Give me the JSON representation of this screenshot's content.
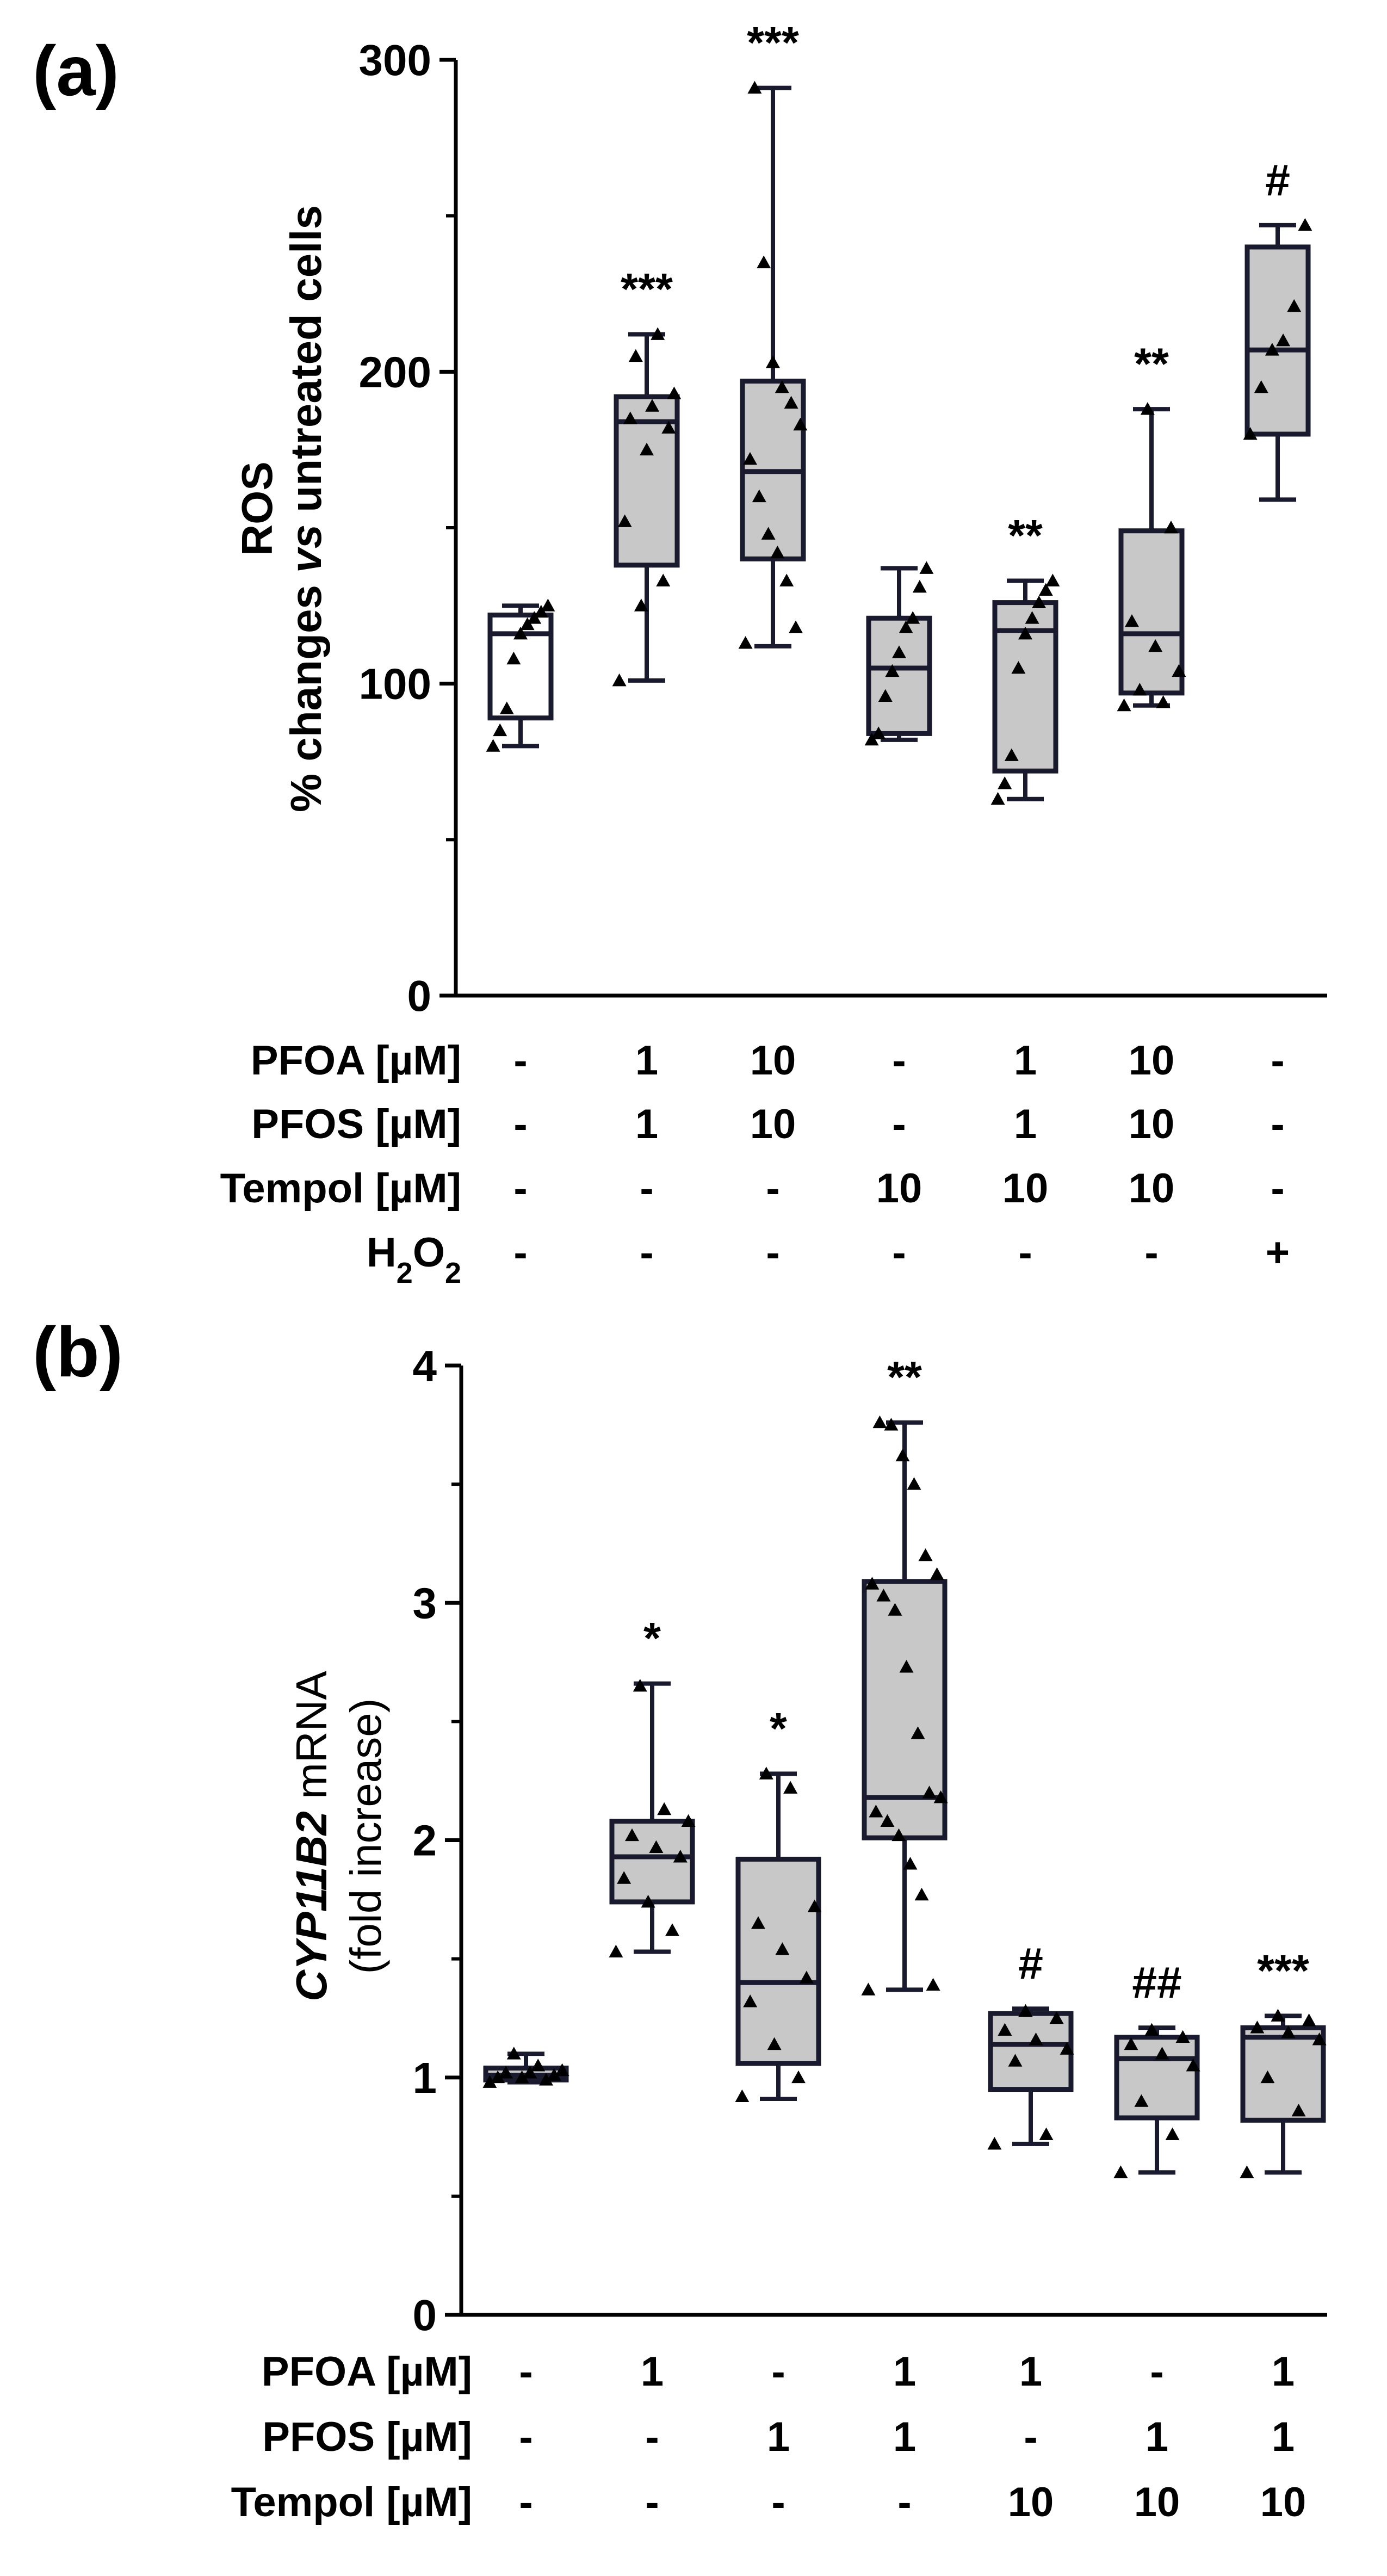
{
  "chart_data": [
    {
      "panel": "(a)",
      "type": "box",
      "ylabel_line1": "ROS",
      "ylabel_line2_pre": "% changes ",
      "ylabel_line2_ital": "vs",
      "ylabel_line2_post": " untreated cells",
      "ylim": [
        0,
        300
      ],
      "yticks": [
        0,
        100,
        200,
        300
      ],
      "groups": [
        {
          "fill": "#ffffff",
          "whisker": [
            80,
            125
          ],
          "q1": 89,
          "median": 116,
          "q3": 122,
          "sig": "",
          "points": [
            80,
            85,
            92,
            108,
            116,
            119,
            121,
            123,
            125
          ]
        },
        {
          "fill": "#c8c8c8",
          "whisker": [
            101,
            212
          ],
          "q1": 138,
          "median": 184,
          "q3": 192,
          "sig": "***",
          "points": [
            101,
            125,
            133,
            152,
            175,
            182,
            185,
            189,
            193,
            205,
            212
          ]
        },
        {
          "fill": "#c8c8c8",
          "whisker": [
            112,
            291
          ],
          "q1": 140,
          "median": 168,
          "q3": 197,
          "sig": "***",
          "points": [
            113,
            118,
            133,
            142,
            148,
            160,
            172,
            183,
            190,
            195,
            203,
            235,
            291
          ]
        },
        {
          "fill": "#c8c8c8",
          "whisker": [
            82,
            137
          ],
          "q1": 84,
          "median": 105,
          "q3": 121,
          "sig": "",
          "points": [
            82,
            84,
            96,
            104,
            110,
            118,
            121,
            131,
            137
          ]
        },
        {
          "fill": "#c8c8c8",
          "whisker": [
            63,
            133
          ],
          "q1": 72,
          "median": 117,
          "q3": 126,
          "sig": "**",
          "points": [
            63,
            68,
            77,
            105,
            116,
            121,
            126,
            130,
            133
          ]
        },
        {
          "fill": "#c8c8c8",
          "whisker": [
            93,
            188
          ],
          "q1": 97,
          "median": 116,
          "q3": 149,
          "sig": "**",
          "points": [
            93,
            94,
            98,
            104,
            112,
            120,
            150,
            188
          ]
        },
        {
          "fill": "#c8c8c8",
          "whisker": [
            159,
            247
          ],
          "q1": 180,
          "median": 207,
          "q3": 240,
          "sig": "#",
          "points": [
            180,
            195,
            207,
            210,
            221,
            247
          ]
        }
      ],
      "table": [
        {
          "label": "PFOA [µM]",
          "values": [
            "-",
            "1",
            "10",
            "-",
            "1",
            "10",
            "-"
          ]
        },
        {
          "label": "PFOS [µM]",
          "values": [
            "-",
            "1",
            "10",
            "-",
            "1",
            "10",
            "-"
          ]
        },
        {
          "label": "Tempol [µM]",
          "values": [
            "-",
            "-",
            "-",
            "10",
            "10",
            "10",
            "-"
          ]
        },
        {
          "label_main": "H",
          "label_sub1": "2",
          "label_mid": "O",
          "label_sub2": "2",
          "values": [
            "-",
            "-",
            "-",
            "-",
            "-",
            "-",
            "+"
          ]
        }
      ]
    },
    {
      "panel": "(b)",
      "type": "box",
      "ylabel_line1_ital": "CYP11B2",
      "ylabel_line1_post": " mRNA",
      "ylabel_line2": "(fold increase)",
      "ylim": [
        0,
        4
      ],
      "yticks": [
        0,
        1,
        2,
        3,
        4
      ],
      "groups": [
        {
          "fill": "#c8c8c8",
          "whisker": [
            0.98,
            1.1
          ],
          "q1": 0.99,
          "median": 1.01,
          "q3": 1.04,
          "sig": "",
          "points": [
            0.98,
            0.99,
            1.0,
            1.0,
            1.01,
            1.02,
            1.02,
            1.03,
            1.05,
            1.1
          ]
        },
        {
          "fill": "#c8c8c8",
          "whisker": [
            1.53,
            2.66
          ],
          "q1": 1.74,
          "median": 1.93,
          "q3": 2.08,
          "sig": "*",
          "points": [
            1.53,
            1.62,
            1.74,
            1.84,
            1.93,
            1.97,
            2.02,
            2.08,
            2.13,
            2.65
          ]
        },
        {
          "fill": "#c8c8c8",
          "whisker": [
            0.91,
            2.28
          ],
          "q1": 1.06,
          "median": 1.4,
          "q3": 1.92,
          "sig": "*",
          "points": [
            0.92,
            1.0,
            1.14,
            1.32,
            1.42,
            1.54,
            1.65,
            1.72,
            2.22,
            2.28
          ]
        },
        {
          "fill": "#c8c8c8",
          "whisker": [
            1.37,
            3.76
          ],
          "q1": 2.01,
          "median": 2.18,
          "q3": 3.09,
          "sig": "**",
          "points": [
            1.37,
            1.39,
            1.77,
            1.9,
            2.02,
            2.08,
            2.12,
            2.18,
            2.2,
            2.45,
            2.73,
            2.97,
            3.03,
            3.08,
            3.12,
            3.2,
            3.5,
            3.62,
            3.75,
            3.76
          ]
        },
        {
          "fill": "#c8c8c8",
          "whisker": [
            0.72,
            1.29
          ],
          "q1": 0.95,
          "median": 1.14,
          "q3": 1.27,
          "sig": "#",
          "points": [
            0.72,
            0.76,
            1.07,
            1.12,
            1.16,
            1.2,
            1.25,
            1.28
          ]
        },
        {
          "fill": "#c8c8c8",
          "whisker": [
            0.6,
            1.21
          ],
          "q1": 0.83,
          "median": 1.08,
          "q3": 1.17,
          "sig": "##",
          "points": [
            0.6,
            0.76,
            0.9,
            1.05,
            1.1,
            1.14,
            1.17,
            1.2
          ]
        },
        {
          "fill": "#c8c8c8",
          "whisker": [
            0.6,
            1.26
          ],
          "q1": 0.82,
          "median": 1.17,
          "q3": 1.21,
          "sig": "***",
          "points": [
            0.6,
            0.86,
            1.0,
            1.16,
            1.19,
            1.21,
            1.24,
            1.26
          ]
        }
      ],
      "table": [
        {
          "label": "PFOA [µM]",
          "values": [
            "-",
            "1",
            "-",
            "1",
            "1",
            "-",
            "1"
          ]
        },
        {
          "label": "PFOS [µM]",
          "values": [
            "-",
            "-",
            "1",
            "1",
            "-",
            "1",
            "1"
          ]
        },
        {
          "label": "Tempol [µM]",
          "values": [
            "-",
            "-",
            "-",
            "-",
            "10",
            "10",
            "10"
          ]
        }
      ]
    }
  ]
}
